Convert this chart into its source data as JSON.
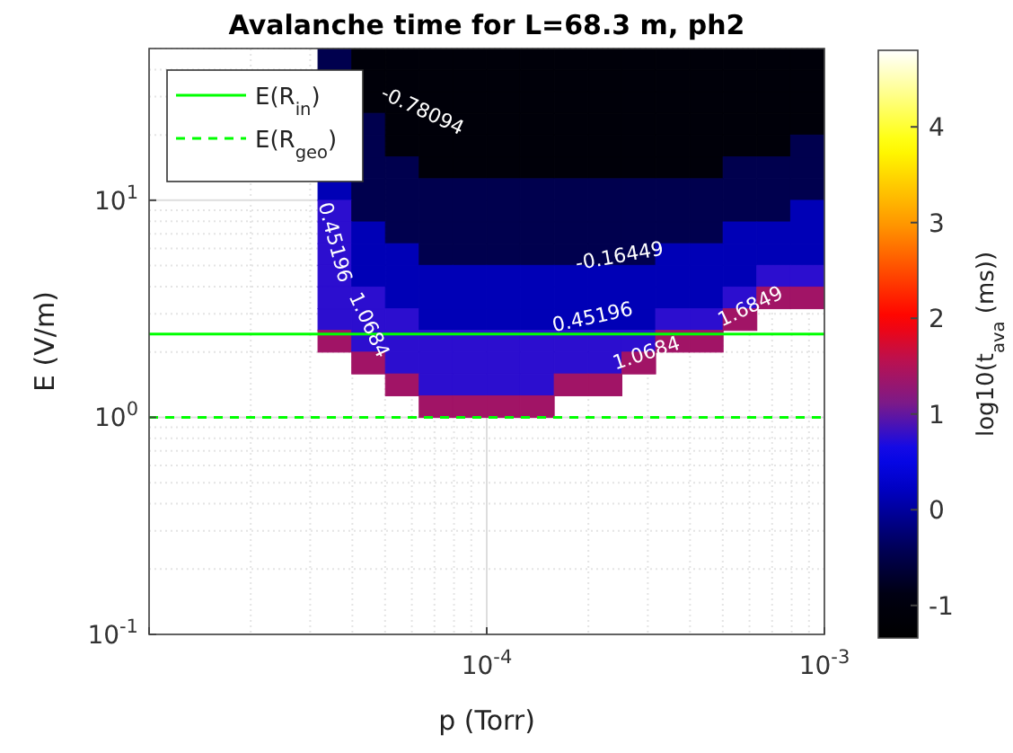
{
  "chart_data": {
    "type": "heatmap",
    "title": "Avalanche time for L=68.3 m, ph2",
    "xlabel": "p (Torr)",
    "ylabel": "E (V/m)",
    "clabel": "log10(t$_{ava}$ (ms))",
    "log": "xy",
    "grid": true,
    "legend": "top left",
    "xlim": [
      1e-05,
      0.001
    ],
    "xticks": [
      {
        "value": 1e-05,
        "label": null
      },
      {
        "value": 0.0001,
        "label": "10$^{-4}$"
      },
      {
        "value": 0.001,
        "label": "10$^{-3}$"
      }
    ],
    "ylim": [
      0.1,
      50
    ],
    "yticks": [
      {
        "value": 0.1,
        "label": "10$^{-1}$"
      },
      {
        "value": 1,
        "label": "10$^{0}$"
      },
      {
        "value": 10,
        "label": "10$^{1}$"
      }
    ],
    "clim": [
      -1.34,
      4.8
    ],
    "cticks": [
      -1,
      0,
      1,
      2,
      3,
      4
    ],
    "x": [
      1.12e-05,
      1.41e-05,
      1.78e-05,
      2.24e-05,
      2.82e-05,
      3.55e-05,
      4.47e-05,
      5.62e-05,
      7.08e-05,
      8.91e-05,
      0.000112,
      0.000141,
      0.000178,
      0.000224,
      0.000282,
      0.000355,
      0.000447,
      0.000562,
      0.000708,
      0.000891
    ],
    "y": [
      44.7,
      35.5,
      28.2,
      22.4,
      17.8,
      14.1,
      11.2,
      8.91,
      7.08,
      5.62,
      4.47,
      3.55,
      2.82,
      2.24,
      1.78,
      1.41,
      1.12
    ],
    "cells": [
      [
        null,
        null,
        null,
        null,
        null,
        -0.47,
        -1.09,
        -1.09,
        -1.09,
        -1.09,
        -1.09,
        -1.09,
        -1.09,
        -1.09,
        -1.09,
        -1.09,
        -1.09,
        -1.09,
        -1.09,
        -1.09
      ],
      [
        null,
        null,
        null,
        null,
        null,
        null,
        -1.09,
        -1.09,
        -1.09,
        -1.09,
        -1.09,
        -1.09,
        -1.09,
        -1.09,
        -1.09,
        -1.09,
        -1.09,
        -1.09,
        -1.09,
        -1.09
      ],
      [
        null,
        null,
        null,
        null,
        null,
        null,
        -1.09,
        -1.09,
        -1.09,
        -1.09,
        -1.09,
        -1.09,
        -1.09,
        -1.09,
        -1.09,
        -1.09,
        -1.09,
        -1.09,
        -1.09,
        -1.09
      ],
      [
        null,
        null,
        null,
        null,
        null,
        null,
        -0.47,
        -1.09,
        -1.09,
        -1.09,
        -1.09,
        -1.09,
        -1.09,
        -1.09,
        -1.09,
        -1.09,
        -1.09,
        -1.09,
        -1.09,
        -1.09
      ],
      [
        null,
        null,
        null,
        null,
        null,
        null,
        -0.47,
        -1.09,
        -1.09,
        -1.09,
        -1.09,
        -1.09,
        -1.09,
        -1.09,
        -1.09,
        -1.09,
        -1.09,
        -1.09,
        -1.09,
        -0.47
      ],
      [
        null,
        null,
        null,
        null,
        null,
        null,
        -0.47,
        -0.47,
        -1.09,
        -1.09,
        -1.09,
        -1.09,
        -1.09,
        -1.09,
        -1.09,
        -1.09,
        -1.09,
        -0.47,
        -0.47,
        -0.47
      ],
      [
        null,
        null,
        null,
        null,
        null,
        0.14,
        -0.47,
        -0.47,
        -0.47,
        -0.47,
        -0.47,
        -0.47,
        -0.47,
        -0.47,
        -0.47,
        -0.47,
        -0.47,
        -0.47,
        -0.47,
        -0.47
      ],
      [
        null,
        null,
        null,
        null,
        null,
        0.76,
        -0.47,
        -0.47,
        -0.47,
        -0.47,
        -0.47,
        -0.47,
        -0.47,
        -0.47,
        -0.47,
        -0.47,
        -0.47,
        -0.47,
        -0.47,
        0.14
      ],
      [
        null,
        null,
        null,
        null,
        null,
        0.76,
        0.14,
        -0.47,
        -0.47,
        -0.47,
        -0.47,
        -0.47,
        -0.47,
        -0.47,
        -0.47,
        -0.47,
        -0.47,
        0.14,
        0.14,
        0.14
      ],
      [
        null,
        null,
        null,
        null,
        null,
        0.76,
        0.14,
        0.14,
        -0.47,
        -0.47,
        -0.47,
        -0.47,
        -0.47,
        -0.47,
        -0.47,
        0.14,
        0.14,
        0.14,
        0.14,
        0.14
      ],
      [
        null,
        null,
        null,
        null,
        null,
        0.76,
        0.14,
        0.14,
        0.14,
        0.14,
        0.14,
        0.14,
        0.14,
        0.14,
        0.14,
        0.14,
        0.14,
        0.14,
        0.76,
        0.76
      ],
      [
        null,
        null,
        null,
        null,
        null,
        0.76,
        0.76,
        0.14,
        0.14,
        0.14,
        0.14,
        0.14,
        0.14,
        0.14,
        0.14,
        0.14,
        0.14,
        0.76,
        1.38,
        1.38
      ],
      [
        null,
        null,
        null,
        null,
        null,
        0.76,
        0.76,
        0.76,
        0.14,
        0.14,
        0.14,
        0.14,
        0.14,
        0.14,
        0.14,
        0.76,
        0.76,
        1.38,
        null,
        null
      ],
      [
        null,
        null,
        null,
        null,
        null,
        1.38,
        0.76,
        0.76,
        0.76,
        0.76,
        0.76,
        0.76,
        0.76,
        0.76,
        0.76,
        1.38,
        1.38,
        null,
        null,
        null
      ],
      [
        null,
        null,
        null,
        null,
        null,
        null,
        1.38,
        0.76,
        0.76,
        0.76,
        0.76,
        0.76,
        0.76,
        0.76,
        1.38,
        null,
        null,
        null,
        null,
        null
      ],
      [
        null,
        null,
        null,
        null,
        null,
        null,
        null,
        1.38,
        0.76,
        0.76,
        0.76,
        0.76,
        1.38,
        1.38,
        null,
        null,
        null,
        null,
        null,
        null
      ],
      [
        null,
        null,
        null,
        null,
        null,
        null,
        null,
        null,
        1.38,
        1.38,
        1.38,
        1.38,
        null,
        null,
        null,
        null,
        null,
        null,
        null,
        null
      ]
    ],
    "ref_lines": [
      {
        "axis": "y",
        "value": 2.42,
        "label": "E(R$_{in}$)",
        "color": "#00ff00",
        "line_style": "solid"
      },
      {
        "axis": "y",
        "value": 1.0,
        "label": "E(R$_{geo}$)",
        "color": "#00ff00",
        "line_style": "dashed"
      }
    ],
    "annotations": [
      "-0.78094",
      "-0.16449",
      "0.45196",
      "0.45196",
      "1.0684",
      "1.0684",
      "1.6849"
    ]
  }
}
